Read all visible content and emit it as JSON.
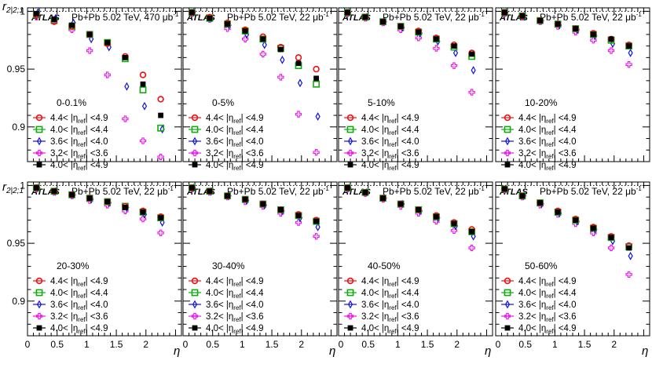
{
  "figure": {
    "ylabel": "r",
    "ylabel_sub": "2|2;1",
    "xlabel": "η",
    "experiment": "ATLAS",
    "system_first": "Pb+Pb 5.02 TeV, 470 μb",
    "system_other": "Pb+Pb 5.02 TeV, 22 μb",
    "lumi_sup": "-1",
    "x_ticks": [
      "0",
      "0.5",
      "1",
      "1.5",
      "2"
    ],
    "y_ticks": [
      "0.9",
      "0.95",
      "1"
    ],
    "legend": [
      {
        "pre": "4.4<",
        "sym": "|η",
        "sub": "ref",
        "post": "| <4.9",
        "marker": "open-circle",
        "color": "#ee1111"
      },
      {
        "pre": "4.0<",
        "sym": "|η",
        "sub": "ref",
        "post": "| <4.4",
        "marker": "open-square",
        "color": "#11aa11"
      },
      {
        "pre": "3.6<",
        "sym": "|η",
        "sub": "ref",
        "post": "| <4.0",
        "marker": "open-diamond",
        "color": "#1111dd"
      },
      {
        "pre": "3.2<",
        "sym": "|η",
        "sub": "ref",
        "post": "| <3.6",
        "marker": "open-cross",
        "color": "#ee11ee"
      },
      {
        "pre": "4.0<",
        "sym": "|η",
        "sub": "ref",
        "post": "| <4.9",
        "marker": "filled-square",
        "color": "#000000"
      }
    ],
    "colors": {
      "axis": "#000000",
      "reference_line": "#000000"
    }
  },
  "chart_data": [
    {
      "type": "scatter",
      "centrality": "0-0.1%",
      "xlim": [
        0,
        2.6
      ],
      "ylim": [
        0.87,
        1.003
      ],
      "eta": [
        0.15,
        0.45,
        0.75,
        1.05,
        1.35,
        1.65,
        1.95,
        2.25
      ],
      "series": [
        {
          "name": "4.4<|η_ref|<4.9",
          "values": [
            0.997,
            0.991,
            0.987,
            0.98,
            0.972,
            0.961,
            0.945,
            0.924
          ]
        },
        {
          "name": "4.0<|η_ref|<4.4",
          "values": [
            0.997,
            0.992,
            0.987,
            0.98,
            0.973,
            0.959,
            0.932,
            0.899
          ]
        },
        {
          "name": "3.6<|η_ref|<4.0",
          "values": [
            0.999,
            0.994,
            0.99,
            0.976,
            0.969,
            0.935,
            0.918,
            0.898
          ]
        },
        {
          "name": "3.2<|η_ref|<3.6",
          "values": [
            0.995,
            0.993,
            0.984,
            0.966,
            0.945,
            0.907,
            0.888,
            0.874
          ]
        },
        {
          "name": "4.0<|η_ref|<4.9",
          "values": [
            0.998,
            0.993,
            0.988,
            0.98,
            0.973,
            0.96,
            0.937,
            0.91
          ]
        }
      ]
    },
    {
      "type": "scatter",
      "centrality": "0-5%",
      "xlim": [
        0,
        2.6
      ],
      "ylim": [
        0.87,
        1.003
      ],
      "eta": [
        0.15,
        0.45,
        0.75,
        1.05,
        1.35,
        1.65,
        1.95,
        2.25
      ],
      "series": [
        {
          "name": "4.4<|η_ref|<4.9",
          "values": [
            0.999,
            0.995,
            0.99,
            0.984,
            0.978,
            0.969,
            0.96,
            0.95
          ]
        },
        {
          "name": "4.0<|η_ref|<4.4",
          "values": [
            0.999,
            0.994,
            0.989,
            0.983,
            0.976,
            0.968,
            0.953,
            0.937
          ]
        },
        {
          "name": "3.6<|η_ref|<4.0",
          "values": [
            0.999,
            0.994,
            0.988,
            0.98,
            0.971,
            0.958,
            0.938,
            0.909
          ]
        },
        {
          "name": "3.2<|η_ref|<3.6",
          "values": [
            0.998,
            0.993,
            0.985,
            0.976,
            0.963,
            0.943,
            0.911,
            0.878
          ]
        },
        {
          "name": "4.0<|η_ref|<4.9",
          "values": [
            0.999,
            0.994,
            0.989,
            0.983,
            0.976,
            0.967,
            0.955,
            0.942
          ]
        }
      ]
    },
    {
      "type": "scatter",
      "centrality": "5-10%",
      "xlim": [
        0,
        2.6
      ],
      "ylim": [
        0.87,
        1.003
      ],
      "eta": [
        0.15,
        0.45,
        0.75,
        1.05,
        1.35,
        1.65,
        1.95,
        2.25
      ],
      "series": [
        {
          "name": "4.4<|η_ref|<4.9",
          "values": [
            0.999,
            0.995,
            0.991,
            0.987,
            0.983,
            0.977,
            0.971,
            0.964
          ]
        },
        {
          "name": "4.0<|η_ref|<4.4",
          "values": [
            0.999,
            0.995,
            0.991,
            0.987,
            0.982,
            0.976,
            0.969,
            0.961
          ]
        },
        {
          "name": "3.6<|η_ref|<4.0",
          "values": [
            0.999,
            0.995,
            0.991,
            0.986,
            0.981,
            0.974,
            0.964,
            0.949
          ]
        },
        {
          "name": "3.2<|η_ref|<3.6",
          "values": [
            0.998,
            0.994,
            0.99,
            0.984,
            0.977,
            0.968,
            0.953,
            0.93
          ]
        },
        {
          "name": "4.0<|η_ref|<4.9",
          "values": [
            0.999,
            0.995,
            0.991,
            0.987,
            0.982,
            0.976,
            0.97,
            0.963
          ]
        }
      ]
    },
    {
      "type": "scatter",
      "centrality": "10-20%",
      "xlim": [
        0,
        2.6
      ],
      "ylim": [
        0.87,
        1.003
      ],
      "eta": [
        0.15,
        0.45,
        0.75,
        1.05,
        1.35,
        1.65,
        1.95,
        2.25
      ],
      "series": [
        {
          "name": "4.4<|η_ref|<4.9",
          "values": [
            0.999,
            0.996,
            0.992,
            0.989,
            0.985,
            0.981,
            0.976,
            0.971
          ]
        },
        {
          "name": "4.0<|η_ref|<4.4",
          "values": [
            0.999,
            0.996,
            0.992,
            0.989,
            0.985,
            0.98,
            0.975,
            0.97
          ]
        },
        {
          "name": "3.6<|η_ref|<4.0",
          "values": [
            0.999,
            0.996,
            0.992,
            0.988,
            0.984,
            0.979,
            0.972,
            0.964
          ]
        },
        {
          "name": "3.2<|η_ref|<3.6",
          "values": [
            0.998,
            0.995,
            0.991,
            0.987,
            0.982,
            0.975,
            0.966,
            0.954
          ]
        },
        {
          "name": "4.0<|η_ref|<4.9",
          "values": [
            0.999,
            0.996,
            0.992,
            0.989,
            0.985,
            0.98,
            0.976,
            0.97
          ]
        }
      ]
    },
    {
      "type": "scatter",
      "centrality": "20-30%",
      "xlim": [
        0,
        2.6
      ],
      "ylim": [
        0.87,
        1.003
      ],
      "eta": [
        0.15,
        0.45,
        0.75,
        1.05,
        1.35,
        1.65,
        1.95,
        2.25
      ],
      "series": [
        {
          "name": "4.4<|η_ref|<4.9",
          "values": [
            0.998,
            0.995,
            0.992,
            0.989,
            0.986,
            0.982,
            0.978,
            0.973
          ]
        },
        {
          "name": "4.0<|η_ref|<4.4",
          "values": [
            0.998,
            0.995,
            0.992,
            0.989,
            0.986,
            0.982,
            0.977,
            0.972
          ]
        },
        {
          "name": "3.6<|η_ref|<4.0",
          "values": [
            0.998,
            0.995,
            0.992,
            0.988,
            0.985,
            0.981,
            0.975,
            0.968
          ]
        },
        {
          "name": "3.2<|η_ref|<3.6",
          "values": [
            0.997,
            0.994,
            0.991,
            0.987,
            0.983,
            0.978,
            0.971,
            0.959
          ]
        },
        {
          "name": "4.0<|η_ref|<4.9",
          "values": [
            0.998,
            0.995,
            0.992,
            0.989,
            0.986,
            0.981,
            0.977,
            0.972
          ]
        }
      ]
    },
    {
      "type": "scatter",
      "centrality": "30-40%",
      "xlim": [
        0,
        2.6
      ],
      "ylim": [
        0.87,
        1.003
      ],
      "eta": [
        0.15,
        0.45,
        0.75,
        1.05,
        1.35,
        1.65,
        1.95,
        2.25
      ],
      "series": [
        {
          "name": "4.4<|η_ref|<4.9",
          "values": [
            0.998,
            0.995,
            0.991,
            0.988,
            0.984,
            0.979,
            0.975,
            0.97
          ]
        },
        {
          "name": "4.0<|η_ref|<4.4",
          "values": [
            0.998,
            0.995,
            0.991,
            0.988,
            0.984,
            0.979,
            0.974,
            0.969
          ]
        },
        {
          "name": "3.6<|η_ref|<4.0",
          "values": [
            0.998,
            0.995,
            0.991,
            0.987,
            0.983,
            0.978,
            0.972,
            0.964
          ]
        },
        {
          "name": "3.2<|η_ref|<3.6",
          "values": [
            0.997,
            0.994,
            0.99,
            0.986,
            0.982,
            0.976,
            0.968,
            0.956
          ]
        },
        {
          "name": "4.0<|η_ref|<4.9",
          "values": [
            0.998,
            0.995,
            0.991,
            0.988,
            0.984,
            0.979,
            0.974,
            0.969
          ]
        }
      ]
    },
    {
      "type": "scatter",
      "centrality": "40-50%",
      "xlim": [
        0,
        2.6
      ],
      "ylim": [
        0.87,
        1.003
      ],
      "eta": [
        0.15,
        0.45,
        0.75,
        1.05,
        1.35,
        1.65,
        1.95,
        2.25
      ],
      "series": [
        {
          "name": "4.4<|η_ref|<4.9",
          "values": [
            0.998,
            0.994,
            0.989,
            0.984,
            0.979,
            0.974,
            0.968,
            0.962
          ]
        },
        {
          "name": "4.0<|η_ref|<4.4",
          "values": [
            0.998,
            0.994,
            0.989,
            0.984,
            0.979,
            0.973,
            0.967,
            0.96
          ]
        },
        {
          "name": "3.6<|η_ref|<4.0",
          "values": [
            0.998,
            0.994,
            0.989,
            0.984,
            0.978,
            0.972,
            0.965,
            0.956
          ]
        },
        {
          "name": "3.2<|η_ref|<3.6",
          "values": [
            0.997,
            0.993,
            0.988,
            0.982,
            0.976,
            0.969,
            0.961,
            0.946
          ]
        },
        {
          "name": "4.0<|η_ref|<4.9",
          "values": [
            0.998,
            0.994,
            0.989,
            0.984,
            0.979,
            0.973,
            0.967,
            0.96
          ]
        }
      ]
    },
    {
      "type": "scatter",
      "centrality": "50-60%",
      "xlim": [
        0,
        2.6
      ],
      "ylim": [
        0.87,
        1.003
      ],
      "eta": [
        0.15,
        0.45,
        0.75,
        1.05,
        1.35,
        1.65,
        1.95,
        2.25
      ],
      "series": [
        {
          "name": "4.4<|η_ref|<4.9",
          "values": [
            0.997,
            0.991,
            0.985,
            0.978,
            0.971,
            0.964,
            0.956,
            0.948
          ]
        },
        {
          "name": "4.0<|η_ref|<4.4",
          "values": [
            0.997,
            0.991,
            0.985,
            0.977,
            0.97,
            0.963,
            0.955,
            0.947
          ]
        },
        {
          "name": "3.6<|η_ref|<4.0",
          "values": [
            0.997,
            0.991,
            0.984,
            0.976,
            0.969,
            0.962,
            0.952,
            0.939
          ]
        },
        {
          "name": "3.2<|η_ref|<3.6",
          "values": [
            0.996,
            0.99,
            0.983,
            0.975,
            0.967,
            0.959,
            0.946,
            0.923
          ]
        },
        {
          "name": "4.0<|η_ref|<4.9",
          "values": [
            0.997,
            0.991,
            0.985,
            0.977,
            0.97,
            0.963,
            0.955,
            0.946
          ]
        }
      ]
    }
  ]
}
